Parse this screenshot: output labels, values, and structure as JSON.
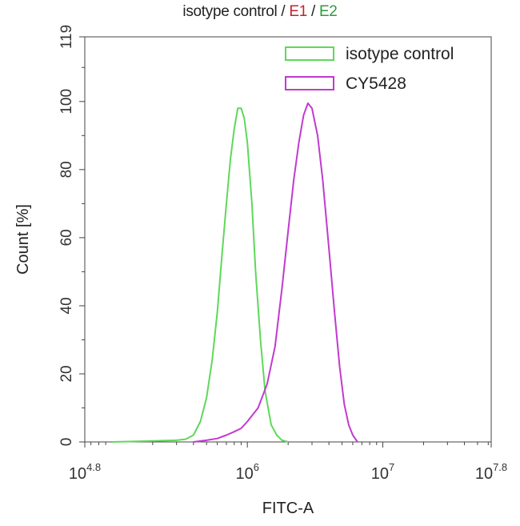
{
  "title": {
    "text": "isotype control / ",
    "e1": "E1",
    "sep": " / ",
    "e2": "E2"
  },
  "chart_data": {
    "type": "area",
    "xscale": "log",
    "xlim": [
      63095.7,
      63095734.4
    ],
    "ylim": [
      0,
      119
    ],
    "xlabel": "FITC-A",
    "ylabel": "Count [%]",
    "yticks": [
      0,
      20,
      40,
      60,
      80,
      100,
      119
    ],
    "xticks": [
      {
        "value": 63095.7,
        "base": "10",
        "exp": "4.8"
      },
      {
        "value": 1000000,
        "base": "10",
        "exp": "6"
      },
      {
        "value": 10000000,
        "base": "10",
        "exp": "7"
      },
      {
        "value": 63095734.4,
        "base": "10",
        "exp": "7.8"
      }
    ],
    "legend_position": "top-right",
    "series": [
      {
        "name": "isotype control",
        "color": "#5fd85a",
        "x": [
          100000,
          200000,
          300000,
          350000,
          400000,
          450000,
          500000,
          550000,
          600000,
          650000,
          700000,
          750000,
          800000,
          850000,
          900000,
          950000,
          1000000,
          1080000,
          1150000,
          1250000,
          1350000,
          1500000,
          1650000,
          1800000,
          2000000
        ],
        "y": [
          0,
          0.3,
          0.5,
          0.8,
          2,
          6,
          13,
          24,
          38,
          55,
          70,
          83,
          92,
          98,
          98,
          95,
          88,
          70,
          50,
          30,
          15,
          5,
          2,
          0.5,
          0
        ]
      },
      {
        "name": "CY5428",
        "color": "#c13ad0",
        "x": [
          400000,
          500000,
          600000,
          700000,
          800000,
          900000,
          1000000,
          1200000,
          1400000,
          1600000,
          1800000,
          2000000,
          2200000,
          2400000,
          2600000,
          2800000,
          3000000,
          3300000,
          3600000,
          4000000,
          4400000,
          4800000,
          5200000,
          5600000,
          6000000,
          6500000
        ],
        "y": [
          0,
          0.5,
          1,
          2,
          3,
          4,
          6,
          10,
          17,
          28,
          45,
          62,
          77,
          88,
          96,
          99.5,
          98,
          90,
          77,
          57,
          38,
          22,
          11,
          5,
          2,
          0
        ]
      }
    ]
  }
}
